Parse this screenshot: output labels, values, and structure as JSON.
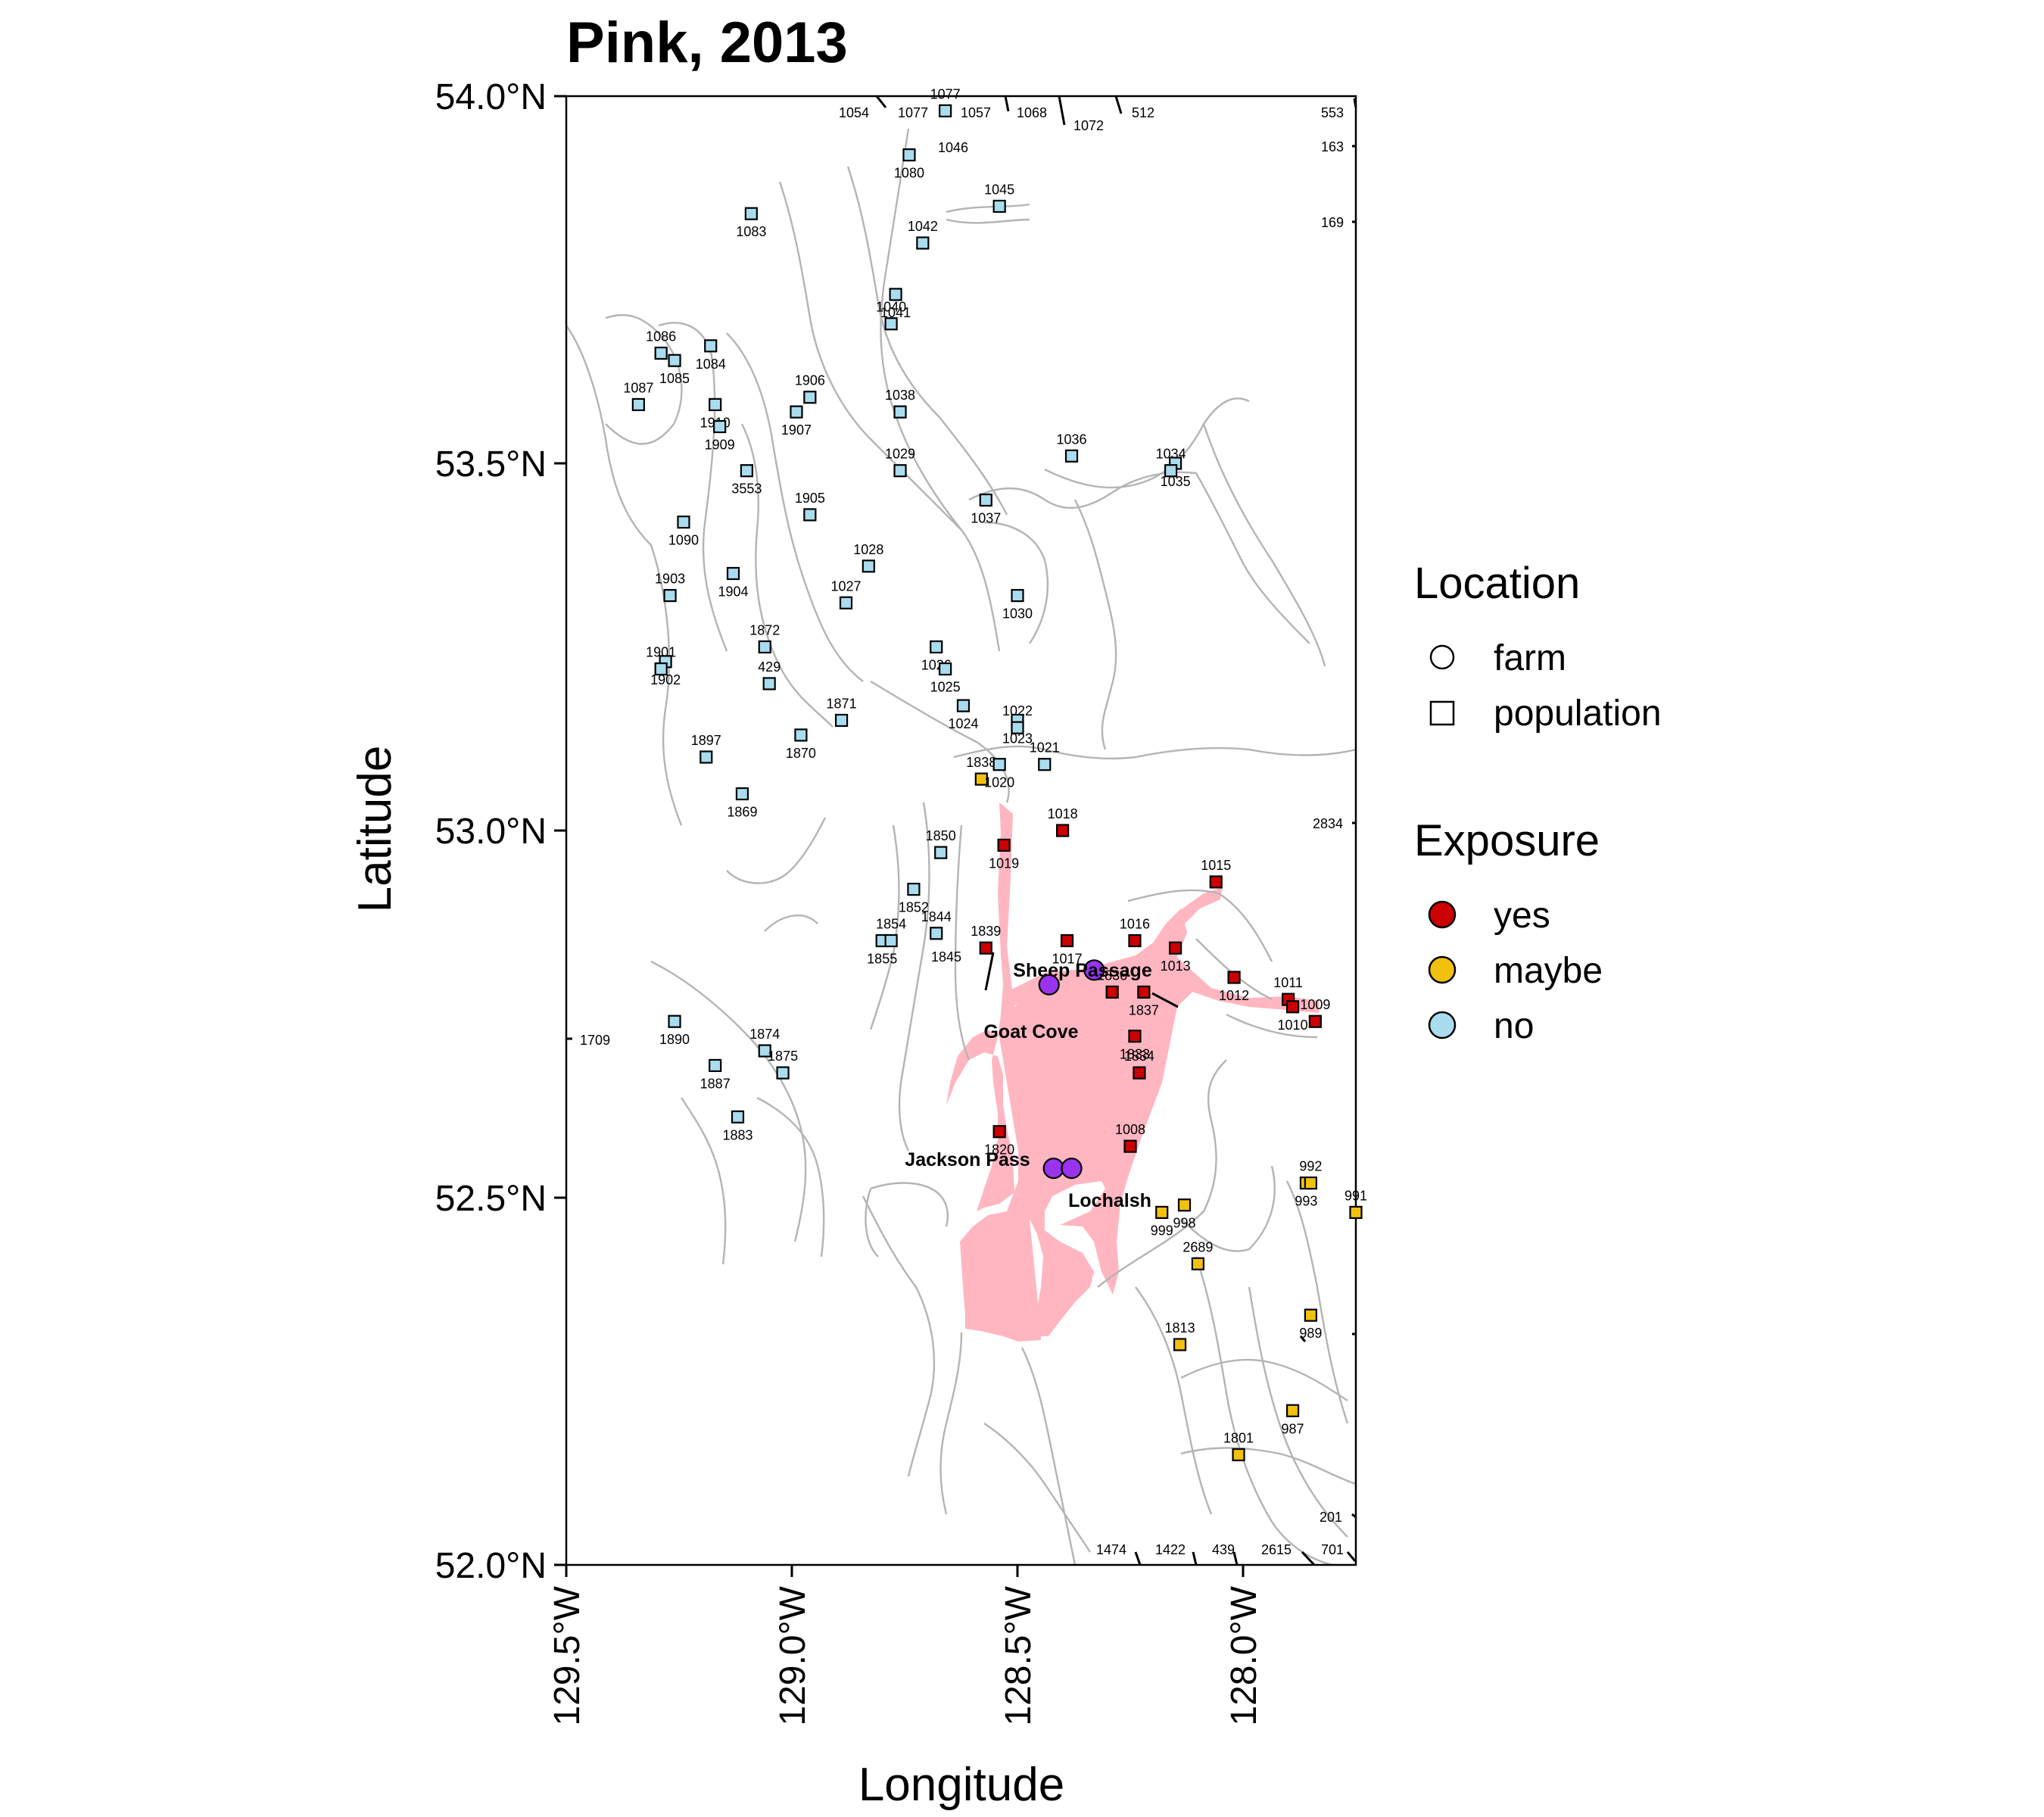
{
  "map": {
    "title": "Pink, 2013",
    "xlabel": "Longitude",
    "ylabel": "Latitude",
    "xlim": [
      -129.5,
      -127.75
    ],
    "ylim": [
      52.0,
      54.0
    ],
    "x_ticks": [
      {
        "value": -129.5,
        "label": "129.5°W"
      },
      {
        "value": -129.0,
        "label": "129.0°W"
      },
      {
        "value": -128.5,
        "label": "128.5°W"
      },
      {
        "value": -128.0,
        "label": "128.0°W"
      }
    ],
    "y_ticks": [
      {
        "value": 54.0,
        "label": "54.0°N"
      },
      {
        "value": 53.5,
        "label": "53.5°N"
      },
      {
        "value": 53.0,
        "label": "53.0°N"
      },
      {
        "value": 52.5,
        "label": "52.5°N"
      },
      {
        "value": 52.0,
        "label": "52.0°N"
      }
    ],
    "colors": {
      "yes": "#cc0000",
      "maybe": "#f2c10e",
      "no": "#a9dcee",
      "farm": "#9933ee",
      "migration_route": "#ffb6c1",
      "coastline": "#b4b4b4"
    }
  },
  "legend": {
    "location_title": "Location",
    "location_items": [
      {
        "label": "farm",
        "shape": "circle"
      },
      {
        "label": "population",
        "shape": "square"
      }
    ],
    "exposure_title": "Exposure",
    "exposure_items": [
      {
        "label": "yes",
        "color": "#cc0000"
      },
      {
        "label": "maybe",
        "color": "#f2c10e"
      },
      {
        "label": "no",
        "color": "#a9dcee"
      }
    ]
  },
  "farms": [
    {
      "name": "Sheep Passage",
      "lon": -128.33,
      "lat": 52.81
    },
    {
      "name": "",
      "lon": -128.43,
      "lat": 52.79
    },
    {
      "name": "Goat Cove",
      "lon": -128.43,
      "lat": 52.79
    },
    {
      "name": "Jackson Pass",
      "lon": -128.42,
      "lat": 52.54
    },
    {
      "name": "Lochalsh",
      "lon": -128.38,
      "lat": 52.54
    }
  ],
  "chart_data": {
    "type": "scatter",
    "title": "Pink, 2013",
    "xlabel": "Longitude",
    "ylabel": "Latitude",
    "xlim": [
      -129.5,
      -127.75
    ],
    "ylim": [
      52.0,
      54.0
    ],
    "series": [
      {
        "name": "yes",
        "points": [
          {
            "id": "1018",
            "lon": -128.4,
            "lat": 53.0
          },
          {
            "id": "1019",
            "lon": -128.53,
            "lat": 52.98
          },
          {
            "id": "1015",
            "lon": -128.06,
            "lat": 52.93
          },
          {
            "id": "1017",
            "lon": -128.39,
            "lat": 52.85
          },
          {
            "id": "1016",
            "lon": -128.24,
            "lat": 52.85
          },
          {
            "id": "1013",
            "lon": -128.15,
            "lat": 52.84
          },
          {
            "id": "1839",
            "lon": -128.57,
            "lat": 52.84
          },
          {
            "id": "1012",
            "lon": -128.02,
            "lat": 52.8
          },
          {
            "id": "1836",
            "lon": -128.29,
            "lat": 52.78
          },
          {
            "id": "1837",
            "lon": -128.22,
            "lat": 52.78
          },
          {
            "id": "1011",
            "lon": -127.9,
            "lat": 52.77
          },
          {
            "id": "1010",
            "lon": -127.89,
            "lat": 52.76
          },
          {
            "id": "1009",
            "lon": -127.84,
            "lat": 52.74
          },
          {
            "id": "1833",
            "lon": -128.24,
            "lat": 52.72
          },
          {
            "id": "1834",
            "lon": -128.23,
            "lat": 52.67
          },
          {
            "id": "1820",
            "lon": -128.54,
            "lat": 52.59
          },
          {
            "id": "1008",
            "lon": -128.25,
            "lat": 52.57
          }
        ]
      },
      {
        "name": "maybe",
        "points": [
          {
            "id": "1838",
            "lon": -128.58,
            "lat": 53.07
          },
          {
            "id": "993",
            "lon": -127.86,
            "lat": 52.52
          },
          {
            "id": "992",
            "lon": -127.85,
            "lat": 52.52
          },
          {
            "id": "998",
            "lon": -128.13,
            "lat": 52.49
          },
          {
            "id": "991",
            "lon": -127.75,
            "lat": 52.48
          },
          {
            "id": "999",
            "lon": -128.18,
            "lat": 52.48
          },
          {
            "id": "2689",
            "lon": -128.1,
            "lat": 52.41
          },
          {
            "id": "989",
            "lon": -127.85,
            "lat": 52.34
          },
          {
            "id": "1813",
            "lon": -128.14,
            "lat": 52.3
          },
          {
            "id": "987",
            "lon": -127.89,
            "lat": 52.21
          },
          {
            "id": "1801",
            "lon": -128.01,
            "lat": 52.15
          }
        ]
      },
      {
        "name": "no",
        "points": [
          {
            "id": "1077",
            "lon": -128.66,
            "lat": 53.98
          },
          {
            "id": "1080",
            "lon": -128.74,
            "lat": 53.92
          },
          {
            "id": "1045",
            "lon": -128.54,
            "lat": 53.85
          },
          {
            "id": "1083",
            "lon": -129.09,
            "lat": 53.84
          },
          {
            "id": "1042",
            "lon": -128.71,
            "lat": 53.8
          },
          {
            "id": "1041",
            "lon": -128.77,
            "lat": 53.73
          },
          {
            "id": "1040",
            "lon": -128.78,
            "lat": 53.69
          },
          {
            "id": "1084",
            "lon": -129.18,
            "lat": 53.66
          },
          {
            "id": "1086",
            "lon": -129.29,
            "lat": 53.65
          },
          {
            "id": "1085",
            "lon": -129.26,
            "lat": 53.64
          },
          {
            "id": "1906",
            "lon": -128.96,
            "lat": 53.59
          },
          {
            "id": "1910",
            "lon": -129.17,
            "lat": 53.58
          },
          {
            "id": "1087",
            "lon": -129.34,
            "lat": 53.58
          },
          {
            "id": "1907",
            "lon": -128.99,
            "lat": 53.57
          },
          {
            "id": "1038",
            "lon": -128.76,
            "lat": 53.57
          },
          {
            "id": "1909",
            "lon": -129.16,
            "lat": 53.55
          },
          {
            "id": "1036",
            "lon": -128.38,
            "lat": 53.51
          },
          {
            "id": "1035",
            "lon": -128.15,
            "lat": 53.5
          },
          {
            "id": "1034",
            "lon": -128.16,
            "lat": 53.49
          },
          {
            "id": "3553",
            "lon": -129.1,
            "lat": 53.49
          },
          {
            "id": "1029",
            "lon": -128.76,
            "lat": 53.49
          },
          {
            "id": "1037",
            "lon": -128.57,
            "lat": 53.45
          },
          {
            "id": "1905",
            "lon": -128.96,
            "lat": 53.43
          },
          {
            "id": "1090",
            "lon": -129.24,
            "lat": 53.42
          },
          {
            "id": "1028",
            "lon": -128.83,
            "lat": 53.36
          },
          {
            "id": "1904",
            "lon": -129.13,
            "lat": 53.35
          },
          {
            "id": "1903",
            "lon": -129.27,
            "lat": 53.32
          },
          {
            "id": "1030",
            "lon": -128.5,
            "lat": 53.32
          },
          {
            "id": "1027",
            "lon": -128.88,
            "lat": 53.31
          },
          {
            "id": "1026",
            "lon": -128.68,
            "lat": 53.25
          },
          {
            "id": "1872",
            "lon": -129.06,
            "lat": 53.25
          },
          {
            "id": "1902",
            "lon": -129.28,
            "lat": 53.23
          },
          {
            "id": "1901",
            "lon": -129.29,
            "lat": 53.22
          },
          {
            "id": "1025",
            "lon": -128.66,
            "lat": 53.22
          },
          {
            "id": "429",
            "lon": -129.05,
            "lat": 53.2
          },
          {
            "id": "1024",
            "lon": -128.62,
            "lat": 53.17
          },
          {
            "id": "1871",
            "lon": -128.89,
            "lat": 53.15
          },
          {
            "id": "1023",
            "lon": -128.5,
            "lat": 53.15
          },
          {
            "id": "1022",
            "lon": -128.5,
            "lat": 53.14
          },
          {
            "id": "1870",
            "lon": -128.98,
            "lat": 53.13
          },
          {
            "id": "1897",
            "lon": -129.19,
            "lat": 53.1
          },
          {
            "id": "1020",
            "lon": -128.54,
            "lat": 53.09
          },
          {
            "id": "1021",
            "lon": -128.44,
            "lat": 53.09
          },
          {
            "id": "1869",
            "lon": -129.11,
            "lat": 53.05
          },
          {
            "id": "1850",
            "lon": -128.67,
            "lat": 52.97
          },
          {
            "id": "1852",
            "lon": -128.73,
            "lat": 52.92
          },
          {
            "id": "1844",
            "lon": -128.68,
            "lat": 52.86
          },
          {
            "id": "1855",
            "lon": -128.8,
            "lat": 52.85
          },
          {
            "id": "1854",
            "lon": -128.78,
            "lat": 52.85
          },
          {
            "id": "1890",
            "lon": -129.26,
            "lat": 52.74
          },
          {
            "id": "1874",
            "lon": -129.06,
            "lat": 52.7
          },
          {
            "id": "1887",
            "lon": -129.17,
            "lat": 52.68
          },
          {
            "id": "1875",
            "lon": -129.02,
            "lat": 52.67
          },
          {
            "id": "1883",
            "lon": -129.12,
            "lat": 52.61
          }
        ]
      }
    ],
    "edge_labels": [
      "1054",
      "1077",
      "1057",
      "1068",
      "1072",
      "512",
      "553",
      "163",
      "169",
      "1046",
      "2834",
      "1709",
      "201",
      "1474",
      "1422",
      "439",
      "2615",
      "701",
      "1845"
    ]
  }
}
